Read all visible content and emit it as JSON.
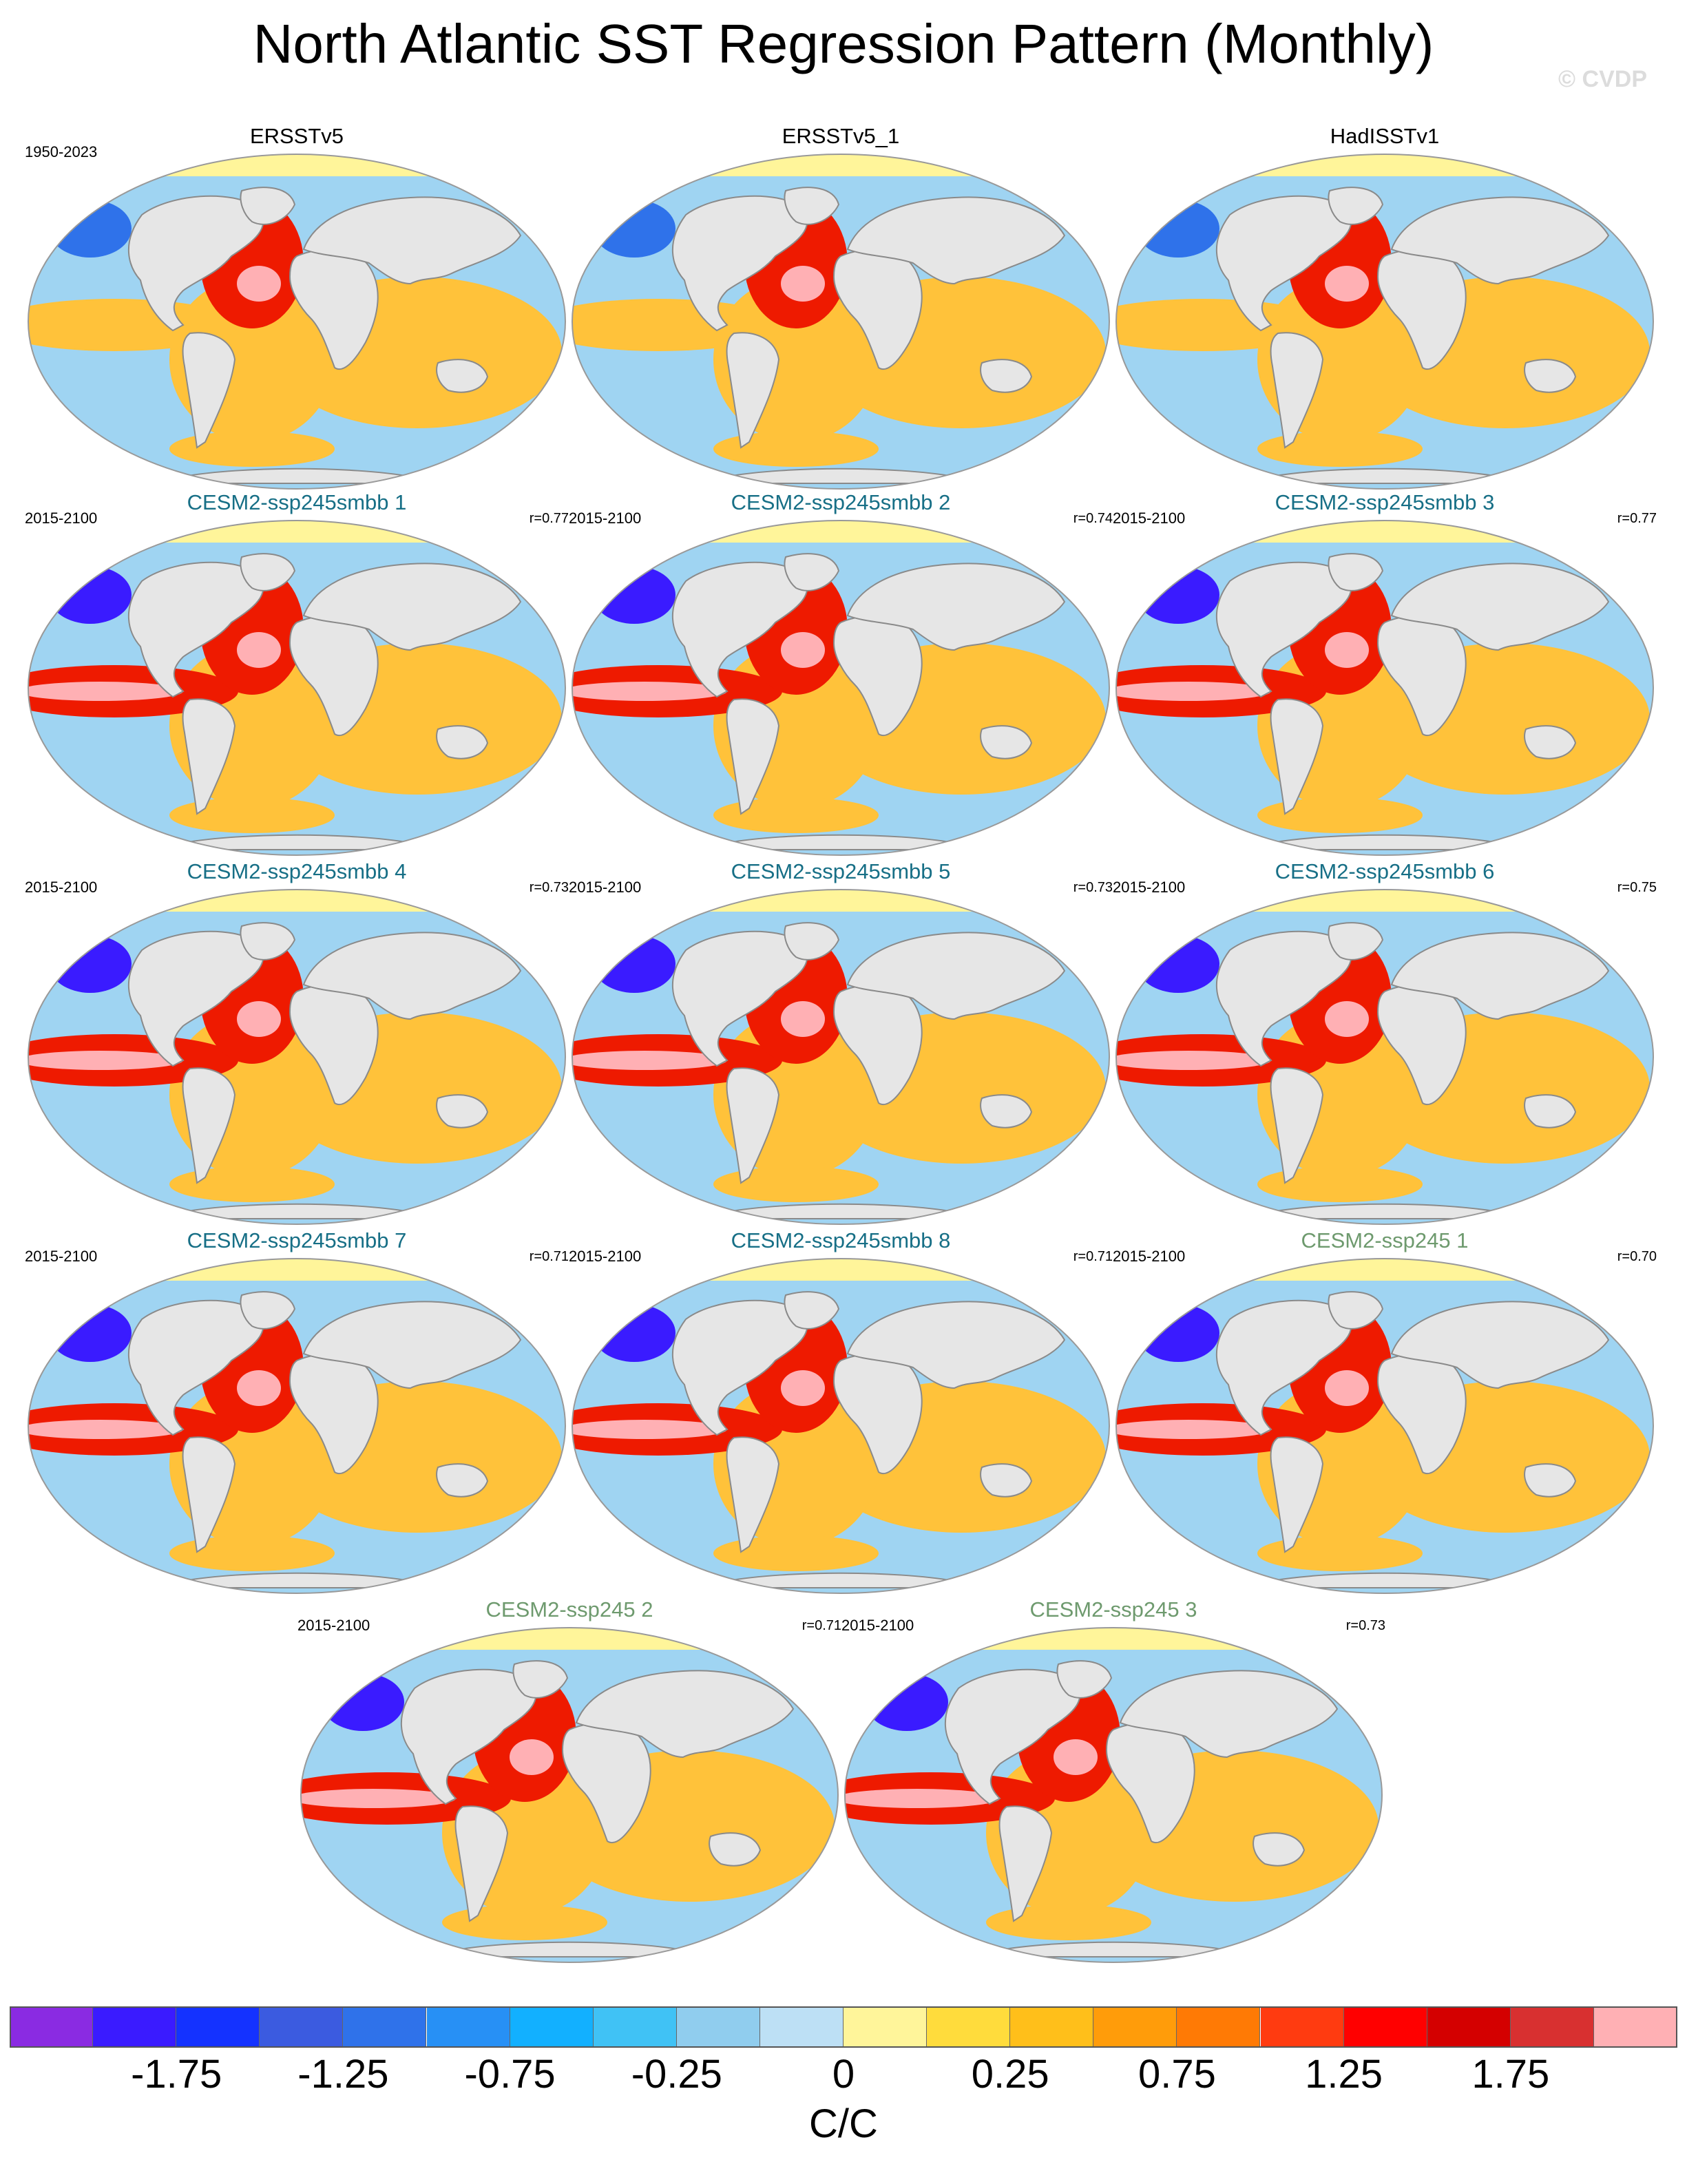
{
  "title": "North Atlantic SST Regression Pattern (Monthly)",
  "copyright": "© CVDP",
  "panels": [
    {
      "name": "ERSSTv5",
      "years": "1950-2023",
      "corr": "",
      "group": "obs"
    },
    {
      "name": "ERSSTv5_1",
      "years": "",
      "corr": "",
      "group": "obs"
    },
    {
      "name": "HadISSTv1",
      "years": "",
      "corr": "",
      "group": "obs"
    },
    {
      "name": "CESM2-ssp245smbb 1",
      "years": "2015-2100",
      "corr": "r=0.77",
      "group": "smbb"
    },
    {
      "name": "CESM2-ssp245smbb 2",
      "years": "2015-2100",
      "corr": "r=0.74",
      "group": "smbb"
    },
    {
      "name": "CESM2-ssp245smbb 3",
      "years": "2015-2100",
      "corr": "r=0.77",
      "group": "smbb"
    },
    {
      "name": "CESM2-ssp245smbb 4",
      "years": "2015-2100",
      "corr": "r=0.73",
      "group": "smbb"
    },
    {
      "name": "CESM2-ssp245smbb 5",
      "years": "2015-2100",
      "corr": "r=0.73",
      "group": "smbb"
    },
    {
      "name": "CESM2-ssp245smbb 6",
      "years": "2015-2100",
      "corr": "r=0.75",
      "group": "smbb"
    },
    {
      "name": "CESM2-ssp245smbb 7",
      "years": "2015-2100",
      "corr": "r=0.71",
      "group": "smbb"
    },
    {
      "name": "CESM2-ssp245smbb 8",
      "years": "2015-2100",
      "corr": "r=0.71",
      "group": "smbb"
    },
    {
      "name": "CESM2-ssp245 1",
      "years": "2015-2100",
      "corr": "r=0.70",
      "group": "ssp"
    },
    {
      "name": "CESM2-ssp245 2",
      "years": "2015-2100",
      "corr": "r=0.71",
      "group": "ssp"
    },
    {
      "name": "CESM2-ssp245 3",
      "years": "2015-2100",
      "corr": "r=0.73",
      "group": "ssp"
    }
  ],
  "colorbar": {
    "unit": "C/C",
    "tick_labels": [
      "-1.75",
      "-1.25",
      "-0.75",
      "-0.25",
      "0",
      "0.25",
      "0.75",
      "1.25",
      "1.75"
    ],
    "colors": [
      "#8a2be2",
      "#3a1bff",
      "#1432ff",
      "#3b5be0",
      "#2f72ea",
      "#2790f5",
      "#12b0ff",
      "#40c2f5",
      "#90cdee",
      "#bde0f5",
      "#fff59a",
      "#ffdc3c",
      "#ffbf1a",
      "#ff9c0a",
      "#ff7a05",
      "#ff3b10",
      "#ff0000",
      "#d40000",
      "#d83030",
      "#ffb0b4"
    ]
  },
  "map_colors": {
    "land": "#e6e6e6",
    "coast": "#8a8a8a",
    "ocean_cool": "#9fd4f2",
    "ocean_warm": "#ffc23a",
    "hot": "#ee1a00",
    "extreme": "#ffb0b4",
    "cold": "#2f72ea",
    "deep_cold": "#3a1bff"
  }
}
